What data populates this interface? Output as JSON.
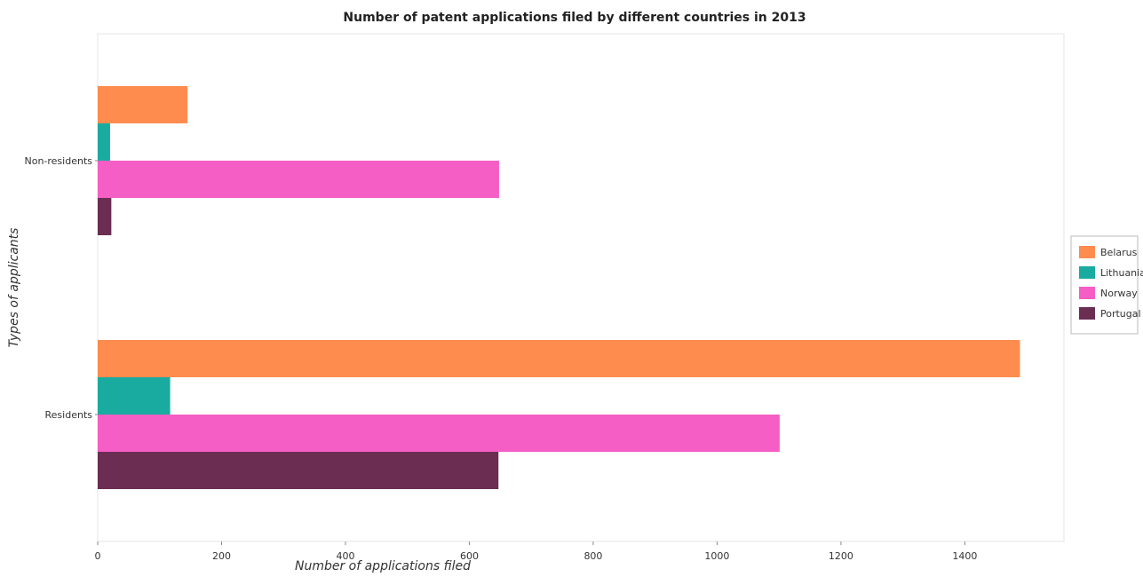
{
  "chart_data": {
    "type": "bar",
    "orientation": "horizontal",
    "title": "Number of patent applications filed by different countries in 2013",
    "xlabel": "Number of applications filed",
    "ylabel": "Types of applicants",
    "categories": [
      "Non-residents",
      "Residents"
    ],
    "xlim": [
      0,
      1560
    ],
    "xticks": [
      0,
      200,
      400,
      600,
      800,
      1000,
      1200,
      1400
    ],
    "grid": false,
    "legend_position": "right",
    "series": [
      {
        "name": "Belarus",
        "color": "#ff8c4f",
        "values": [
          145,
          1489
        ]
      },
      {
        "name": "Lithuania",
        "color": "#1aaba0",
        "values": [
          20,
          117
        ]
      },
      {
        "name": "Norway",
        "color": "#f55ec4",
        "values": [
          648,
          1101
        ]
      },
      {
        "name": "Portugal",
        "color": "#6b2d52",
        "values": [
          22,
          647
        ]
      }
    ]
  }
}
